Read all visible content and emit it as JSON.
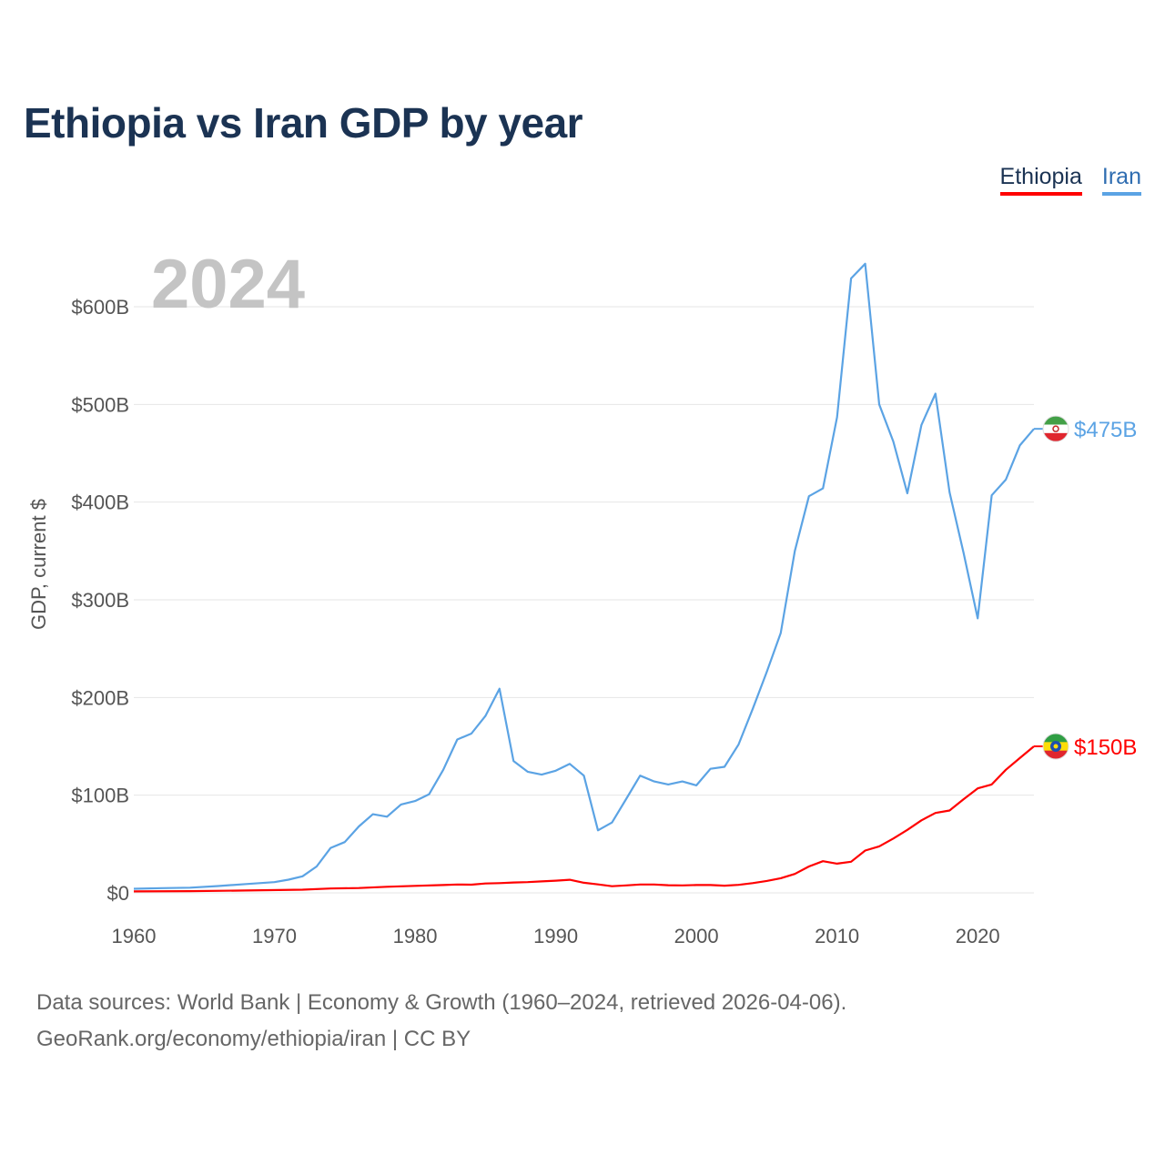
{
  "title": "Ethiopia vs Iran GDP by year",
  "legend": {
    "ethiopia": "Ethiopia",
    "iran": "Iran"
  },
  "year_label": "2024",
  "source": {
    "line1": "Data sources: World Bank | Economy & Growth (1960–2024, retrieved 2026-04-06).",
    "line2": "GeoRank.org/economy/ethiopia/iran | CC BY"
  },
  "chart_data": {
    "type": "line",
    "title": "Ethiopia vs Iran GDP by year",
    "xlabel": "",
    "ylabel": "GDP, current $",
    "xlim": [
      1960,
      2024
    ],
    "ylim": [
      0,
      650
    ],
    "y_unit": "billions USD",
    "x_ticks": [
      "1960",
      "1970",
      "1980",
      "1990",
      "2000",
      "2010",
      "2020"
    ],
    "y_ticks": [
      {
        "value": 0,
        "label": "$0"
      },
      {
        "value": 100,
        "label": "$100B"
      },
      {
        "value": 200,
        "label": "$200B"
      },
      {
        "value": 300,
        "label": "$300B"
      },
      {
        "value": 400,
        "label": "$400B"
      },
      {
        "value": 500,
        "label": "$500B"
      },
      {
        "value": 600,
        "label": "$600B"
      }
    ],
    "grid": true,
    "legend_position": "top-right",
    "series": [
      {
        "name": "Iran",
        "color": "#5ba3e4",
        "end_label": "$475B",
        "flag": "iran-flag",
        "points": [
          [
            1960,
            4.2
          ],
          [
            1962,
            4.8
          ],
          [
            1964,
            5.3
          ],
          [
            1966,
            7.0
          ],
          [
            1968,
            9.0
          ],
          [
            1970,
            11.0
          ],
          [
            1971,
            13.5
          ],
          [
            1972,
            17.0
          ],
          [
            1973,
            27.0
          ],
          [
            1974,
            46.0
          ],
          [
            1975,
            52.0
          ],
          [
            1976,
            68.0
          ],
          [
            1977,
            80.5
          ],
          [
            1978,
            78.0
          ],
          [
            1979,
            90.5
          ],
          [
            1980,
            94.0
          ],
          [
            1981,
            101.0
          ],
          [
            1982,
            126.0
          ],
          [
            1983,
            157.0
          ],
          [
            1984,
            163.0
          ],
          [
            1985,
            181.0
          ],
          [
            1986,
            209.0
          ],
          [
            1987,
            135.0
          ],
          [
            1988,
            124.0
          ],
          [
            1989,
            121.0
          ],
          [
            1990,
            125.0
          ],
          [
            1991,
            132.0
          ],
          [
            1992,
            120.0
          ],
          [
            1993,
            64.0
          ],
          [
            1994,
            72.0
          ],
          [
            1995,
            96.0
          ],
          [
            1996,
            120.0
          ],
          [
            1997,
            114.0
          ],
          [
            1998,
            111.0
          ],
          [
            1999,
            114.0
          ],
          [
            2000,
            110.0
          ],
          [
            2001,
            127.0
          ],
          [
            2002,
            129.0
          ],
          [
            2003,
            152.0
          ],
          [
            2004,
            188.0
          ],
          [
            2005,
            226.0
          ],
          [
            2006,
            266.0
          ],
          [
            2007,
            350.0
          ],
          [
            2008,
            406.0
          ],
          [
            2009,
            414.0
          ],
          [
            2010,
            487.0
          ],
          [
            2011,
            629.0
          ],
          [
            2012,
            644.0
          ],
          [
            2013,
            500.0
          ],
          [
            2014,
            462.0
          ],
          [
            2015,
            409.0
          ],
          [
            2016,
            479.0
          ],
          [
            2017,
            511.0
          ],
          [
            2018,
            410.0
          ],
          [
            2019,
            348.0
          ],
          [
            2020,
            281.0
          ],
          [
            2021,
            407.0
          ],
          [
            2022,
            423.0
          ],
          [
            2023,
            458.0
          ],
          [
            2024,
            475.0
          ]
        ]
      },
      {
        "name": "Ethiopia",
        "color": "#ff0000",
        "end_label": "$150B",
        "flag": "ethiopia-flag",
        "points": [
          [
            1960,
            1.5
          ],
          [
            1964,
            1.8
          ],
          [
            1968,
            2.4
          ],
          [
            1972,
            3.3
          ],
          [
            1974,
            4.5
          ],
          [
            1976,
            4.9
          ],
          [
            1978,
            6.2
          ],
          [
            1980,
            7.2
          ],
          [
            1982,
            8.0
          ],
          [
            1983,
            8.6
          ],
          [
            1984,
            8.4
          ],
          [
            1985,
            9.6
          ],
          [
            1986,
            10.0
          ],
          [
            1987,
            10.6
          ],
          [
            1988,
            11.0
          ],
          [
            1989,
            11.7
          ],
          [
            1990,
            12.5
          ],
          [
            1991,
            13.4
          ],
          [
            1992,
            10.3
          ],
          [
            1993,
            8.7
          ],
          [
            1994,
            6.8
          ],
          [
            1995,
            7.6
          ],
          [
            1996,
            8.6
          ],
          [
            1997,
            8.6
          ],
          [
            1998,
            7.8
          ],
          [
            1999,
            7.6
          ],
          [
            2000,
            8.0
          ],
          [
            2001,
            8.0
          ],
          [
            2002,
            7.4
          ],
          [
            2003,
            8.2
          ],
          [
            2004,
            10.0
          ],
          [
            2005,
            12.2
          ],
          [
            2006,
            15.0
          ],
          [
            2007,
            19.4
          ],
          [
            2008,
            27.0
          ],
          [
            2009,
            32.4
          ],
          [
            2010,
            29.9
          ],
          [
            2011,
            31.9
          ],
          [
            2012,
            43.3
          ],
          [
            2013,
            47.6
          ],
          [
            2014,
            55.6
          ],
          [
            2015,
            64.5
          ],
          [
            2016,
            74.3
          ],
          [
            2017,
            81.8
          ],
          [
            2018,
            84.3
          ],
          [
            2019,
            95.9
          ],
          [
            2020,
            107.0
          ],
          [
            2021,
            111.0
          ],
          [
            2022,
            126.0
          ],
          [
            2023,
            138.0
          ],
          [
            2024,
            150.0
          ]
        ]
      }
    ]
  }
}
